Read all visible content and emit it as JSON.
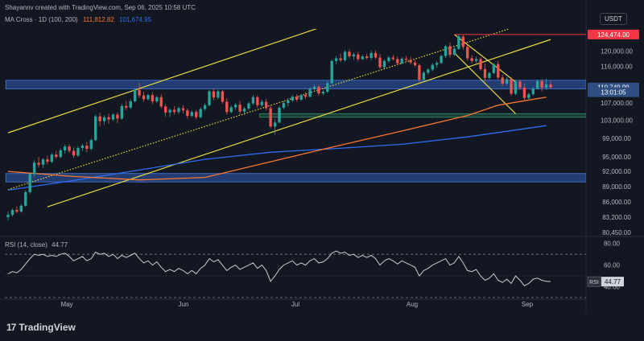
{
  "header": {
    "author_line": "Shayannv created with TradingView.com, Sep 06, 2025 10:58 UTC",
    "indicator_name": "MA Cross · 1D (100, 200)",
    "ma100_value": "111,812.82",
    "ma200_value": "101,674.95",
    "rsi_name": "RSI (14, close)",
    "rsi_value": "44.77",
    "currency": "USDT"
  },
  "brand": {
    "logo_mark": "17",
    "name": "TradingView"
  },
  "colors": {
    "background": "#131722",
    "up": "#26a69a",
    "down": "#ef5350",
    "ma100": "#f7762f",
    "ma200": "#2f6df0",
    "channel": "#e8d93b",
    "zone_blue": "#2a4b8d",
    "zone_green": "#1e4a3d",
    "rsi_line": "#c9ccd3"
  },
  "chart_data": {
    "type": "candlestick",
    "symbol_quote": "USDT",
    "x_tick_labels": [
      "May",
      "Jun",
      "Jul",
      "Aug",
      "Sep"
    ],
    "y_tick_labels": [
      "80,450.00",
      "83,200.00",
      "86,000.00",
      "89,000.00",
      "92,000.00",
      "95,000.00",
      "99,000.00",
      "103,000.00",
      "107,000.00",
      "116,000.00",
      "120,000.00"
    ],
    "ylim": [
      80000,
      126000
    ],
    "price_labels": [
      {
        "id": "high",
        "text": "124,474.00",
        "value": 124474,
        "color": "#f23645"
      },
      {
        "id": "last",
        "text": "110,749.99",
        "value": 110750,
        "color": "#2f4e82"
      },
      {
        "id": "countdown",
        "text": "13:01:05",
        "value": 109600,
        "color": "#2f4e82"
      }
    ],
    "candles": [
      [
        83200,
        84200,
        82600,
        83600
      ],
      [
        83600,
        84800,
        83300,
        84500
      ],
      [
        84500,
        85200,
        83900,
        84200
      ],
      [
        84200,
        85600,
        84000,
        85300
      ],
      [
        85300,
        88200,
        85100,
        87900
      ],
      [
        87900,
        91800,
        87600,
        91500
      ],
      [
        91500,
        94300,
        91000,
        93800
      ],
      [
        93800,
        95000,
        92800,
        93400
      ],
      [
        93400,
        94800,
        92700,
        94500
      ],
      [
        94500,
        95300,
        93500,
        94000
      ],
      [
        94000,
        95900,
        93700,
        95500
      ],
      [
        95500,
        96300,
        94600,
        95000
      ],
      [
        95000,
        96800,
        94700,
        96400
      ],
      [
        96400,
        97600,
        95700,
        97200
      ],
      [
        97200,
        97700,
        95800,
        96300
      ],
      [
        96300,
        97000,
        94800,
        95300
      ],
      [
        95300,
        97300,
        95000,
        96900
      ],
      [
        96900,
        97800,
        96300,
        97400
      ],
      [
        97400,
        98200,
        96000,
        96700
      ],
      [
        96700,
        98900,
        96400,
        98600
      ],
      [
        98600,
        104300,
        98400,
        103900
      ],
      [
        103900,
        104700,
        101700,
        102800
      ],
      [
        102800,
        104200,
        102000,
        103700
      ],
      [
        103700,
        104500,
        102200,
        103200
      ],
      [
        103200,
        104600,
        102800,
        104300
      ],
      [
        104300,
        104800,
        102400,
        103400
      ],
      [
        103400,
        106800,
        103100,
        106300
      ],
      [
        106300,
        107500,
        105300,
        105900
      ],
      [
        105900,
        107900,
        105600,
        107400
      ],
      [
        107400,
        110600,
        107100,
        110200
      ],
      [
        110200,
        111900,
        108200,
        108800
      ],
      [
        108800,
        109700,
        107300,
        107900
      ],
      [
        107900,
        109200,
        107600,
        108900
      ],
      [
        108900,
        109600,
        106800,
        107400
      ],
      [
        107400,
        108700,
        107000,
        108400
      ],
      [
        108400,
        109200,
        105800,
        106200
      ],
      [
        106200,
        106700,
        103900,
        104800
      ],
      [
        104800,
        105800,
        103800,
        105400
      ],
      [
        105400,
        106300,
        104300,
        104900
      ],
      [
        104900,
        106200,
        104500,
        105800
      ],
      [
        105800,
        106500,
        104600,
        105300
      ],
      [
        105300,
        105700,
        103400,
        104000
      ],
      [
        104000,
        105300,
        103700,
        104900
      ],
      [
        104900,
        105400,
        103200,
        103700
      ],
      [
        103700,
        106000,
        103500,
        105600
      ],
      [
        105600,
        106900,
        105200,
        106500
      ],
      [
        106500,
        110100,
        106200,
        109800
      ],
      [
        109800,
        110400,
        107700,
        108300
      ],
      [
        108300,
        110200,
        107900,
        109800
      ],
      [
        109800,
        110100,
        106800,
        107300
      ],
      [
        107300,
        108200,
        104300,
        104900
      ],
      [
        104900,
        106400,
        104600,
        106000
      ],
      [
        106000,
        107000,
        105400,
        106600
      ],
      [
        106600,
        107500,
        104400,
        105000
      ],
      [
        105000,
        106100,
        104200,
        105700
      ],
      [
        105700,
        107300,
        105400,
        106900
      ],
      [
        106900,
        108900,
        106500,
        108400
      ],
      [
        108400,
        108800,
        105900,
        106500
      ],
      [
        106500,
        107800,
        106100,
        107300
      ],
      [
        107300,
        108000,
        105200,
        105800
      ],
      [
        105800,
        106400,
        101200,
        101600
      ],
      [
        101600,
        103200,
        99800,
        102500
      ],
      [
        102500,
        106300,
        102300,
        105900
      ],
      [
        105900,
        107400,
        105500,
        107000
      ],
      [
        107000,
        108200,
        106200,
        107600
      ],
      [
        107600,
        108900,
        107200,
        108500
      ],
      [
        108500,
        109100,
        107300,
        107800
      ],
      [
        107800,
        109200,
        107500,
        108900
      ],
      [
        108900,
        109600,
        108000,
        108500
      ],
      [
        108500,
        110800,
        108300,
        110300
      ],
      [
        110300,
        111500,
        109700,
        110900
      ],
      [
        110900,
        111400,
        108700,
        109300
      ],
      [
        109300,
        110100,
        108900,
        109700
      ],
      [
        109700,
        112300,
        109400,
        111800
      ],
      [
        111800,
        117800,
        111600,
        117400
      ],
      [
        117400,
        118700,
        116600,
        118100
      ],
      [
        118100,
        119300,
        117100,
        117600
      ],
      [
        117600,
        120300,
        117200,
        119800
      ],
      [
        119800,
        120400,
        118100,
        118600
      ],
      [
        118600,
        119600,
        117700,
        119100
      ],
      [
        119100,
        119800,
        117300,
        117900
      ],
      [
        117900,
        119000,
        117600,
        118600
      ],
      [
        118600,
        119300,
        117800,
        118200
      ],
      [
        118200,
        120100,
        117600,
        119500
      ],
      [
        119500,
        120200,
        117900,
        118300
      ],
      [
        118300,
        119200,
        115300,
        115800
      ],
      [
        115800,
        117800,
        115500,
        117400
      ],
      [
        117400,
        118700,
        116900,
        118300
      ],
      [
        118300,
        119000,
        117500,
        117900
      ],
      [
        117900,
        118600,
        116300,
        116800
      ],
      [
        116800,
        118400,
        116500,
        118000
      ],
      [
        118000,
        118700,
        117300,
        117700
      ],
      [
        117700,
        118500,
        116500,
        117000
      ],
      [
        117000,
        117600,
        115900,
        116300
      ],
      [
        116300,
        116700,
        112100,
        112700
      ],
      [
        112700,
        114800,
        112400,
        114400
      ],
      [
        114400,
        115600,
        113900,
        115200
      ],
      [
        115200,
        116900,
        114800,
        116400
      ],
      [
        116400,
        117400,
        115600,
        116900
      ],
      [
        116900,
        119100,
        116600,
        118700
      ],
      [
        118700,
        121700,
        118200,
        121300
      ],
      [
        121300,
        122300,
        118300,
        119000
      ],
      [
        119000,
        121000,
        118700,
        120600
      ],
      [
        120600,
        124474,
        120300,
        123900
      ],
      [
        123900,
        124300,
        120400,
        121100
      ],
      [
        121100,
        121700,
        117500,
        118100
      ],
      [
        118100,
        118900,
        116800,
        117400
      ],
      [
        117400,
        118600,
        116900,
        117900
      ],
      [
        117900,
        118300,
        114900,
        115300
      ],
      [
        115300,
        116800,
        112300,
        113100
      ],
      [
        113100,
        114700,
        112700,
        114300
      ],
      [
        114300,
        116800,
        114000,
        116600
      ],
      [
        116600,
        117400,
        112700,
        113200
      ],
      [
        113200,
        113900,
        111100,
        111700
      ],
      [
        111700,
        113300,
        111400,
        112800
      ],
      [
        112800,
        113300,
        108700,
        109200
      ],
      [
        109200,
        112600,
        108900,
        112200
      ],
      [
        112200,
        112700,
        110200,
        110700
      ],
      [
        110700,
        111800,
        107400,
        108200
      ],
      [
        108200,
        109500,
        107800,
        109100
      ],
      [
        109100,
        110900,
        108700,
        110500
      ],
      [
        110500,
        112700,
        110200,
        112300
      ],
      [
        112300,
        112800,
        109800,
        110700
      ],
      [
        110700,
        112900,
        110200,
        111500
      ],
      [
        111500,
        112400,
        110400,
        110750
      ]
    ],
    "ma100": [
      [
        0,
        92000
      ],
      [
        15,
        91000
      ],
      [
        30,
        90300
      ],
      [
        45,
        90800
      ],
      [
        60,
        94000
      ],
      [
        75,
        97300
      ],
      [
        90,
        100600
      ],
      [
        105,
        104100
      ],
      [
        112,
        106500
      ],
      [
        123,
        108400
      ]
    ],
    "ma200": [
      [
        0,
        88300
      ],
      [
        15,
        90200
      ],
      [
        30,
        92300
      ],
      [
        45,
        94500
      ],
      [
        60,
        96000
      ],
      [
        75,
        96800
      ],
      [
        90,
        97700
      ],
      [
        105,
        99300
      ],
      [
        123,
        101800
      ]
    ],
    "channel_lines": [
      {
        "id": "channel-upper",
        "from": [
          0,
          100200
        ],
        "to": [
          86,
          132600
        ],
        "style": "solid"
      },
      {
        "id": "channel-lower",
        "from": [
          9,
          85100
        ],
        "to": [
          124,
          123100
        ],
        "style": "solid"
      },
      {
        "id": "channel-mid",
        "from": [
          0,
          88400
        ],
        "to": [
          127,
          131000
        ],
        "style": "dotted"
      },
      {
        "id": "wedge-top",
        "from": [
          102,
          124474
        ],
        "to": [
          116,
          112100
        ],
        "style": "solid"
      },
      {
        "id": "wedge-bottom",
        "from": [
          102,
          119500
        ],
        "to": [
          116,
          104500
        ],
        "style": "solid"
      }
    ],
    "high_line": {
      "from_index": 102,
      "value": 124474
    },
    "zones": [
      {
        "id": "resistance-zone",
        "type": "blue",
        "from_index": 0,
        "to_index": 130,
        "low": 110400,
        "high": 112500
      },
      {
        "id": "support-zone",
        "type": "green",
        "from_index": 58,
        "to_index": 130,
        "low": 103700,
        "high": 104500
      },
      {
        "id": "demand-zone",
        "type": "blue",
        "from_index": 0,
        "to_index": 130,
        "low": 89900,
        "high": 91600
      }
    ],
    "rsi": {
      "value": 44.77,
      "label": "RSI",
      "value_text": "44.77",
      "bands": [
        70,
        30
      ],
      "mid": 50,
      "y_tick_labels": [
        "80.00",
        "60.00",
        "40.00"
      ],
      "values": [
        52,
        54,
        53,
        56,
        61,
        66,
        70,
        69,
        70,
        68,
        69,
        68,
        70,
        71,
        68,
        64,
        66,
        68,
        64,
        66,
        72,
        70,
        71,
        68,
        70,
        66,
        69,
        67,
        69,
        71,
        66,
        62,
        64,
        60,
        63,
        58,
        54,
        56,
        54,
        57,
        55,
        52,
        55,
        52,
        57,
        60,
        66,
        63,
        65,
        60,
        55,
        58,
        60,
        56,
        58,
        60,
        62,
        57,
        60,
        55,
        45,
        50,
        56,
        60,
        62,
        64,
        60,
        62,
        60,
        64,
        66,
        62,
        63,
        66,
        71,
        73,
        71,
        72,
        69,
        70,
        67,
        69,
        67,
        69,
        66,
        60,
        64,
        66,
        64,
        61,
        64,
        62,
        60,
        58,
        50,
        55,
        57,
        60,
        62,
        64,
        66,
        60,
        62,
        68,
        62,
        55,
        54,
        56,
        50,
        46,
        48,
        52,
        46,
        44,
        47,
        43,
        50,
        46,
        41,
        43,
        47,
        48,
        46,
        45,
        44.77
      ]
    }
  }
}
